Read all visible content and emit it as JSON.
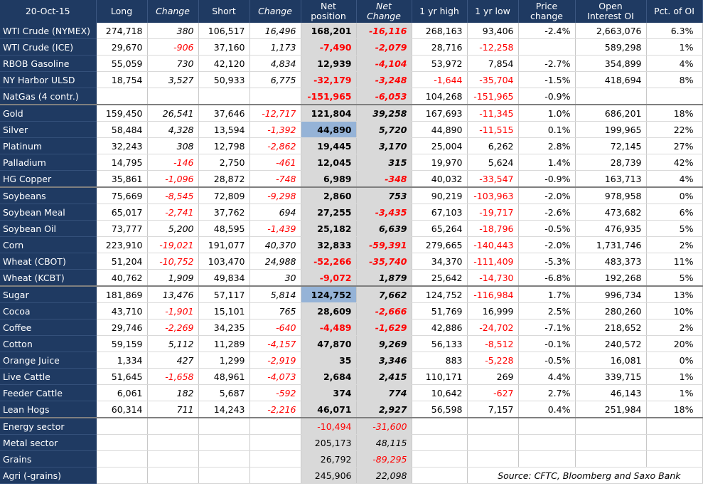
{
  "header": {
    "date": "20-Oct-15",
    "long": "Long",
    "change": "Change",
    "short": "Short",
    "change2": "Change",
    "net_position_line1": "Net",
    "net_position_line2": "position",
    "net_change_line1": "Net",
    "net_change_line2": "Change",
    "yr_high": "1 yr high",
    "yr_low": "1 yr low",
    "price_change_line1": "Price",
    "price_change_line2": "change",
    "oi_line1": "Open",
    "oi_line2": "Interest OI",
    "pct_oi": "Pct. of OI"
  },
  "rows": [
    {
      "name": "WTI Crude (NYMEX)",
      "long": "274,718",
      "chg_long": "380",
      "short": "106,517",
      "chg_short": "16,496",
      "net": "168,201",
      "net_chg": "-16,116",
      "high": "268,163",
      "low": "93,406",
      "price_chg": "-2.4%",
      "oi": "2,663,076",
      "pct": "6.3%"
    },
    {
      "name": "WTI Crude (ICE)",
      "long": "29,670",
      "chg_long": "-906",
      "short": "37,160",
      "chg_short": "1,173",
      "net": "-7,490",
      "net_chg": "-2,079",
      "high": "28,716",
      "low": "-12,258",
      "price_chg": "",
      "oi": "589,298",
      "pct": "1%"
    },
    {
      "name": "RBOB Gasoline",
      "long": "55,059",
      "chg_long": "730",
      "short": "42,120",
      "chg_short": "4,834",
      "net": "12,939",
      "net_chg": "-4,104",
      "high": "53,972",
      "low": "7,854",
      "price_chg": "-2.7%",
      "oi": "354,899",
      "pct": "4%"
    },
    {
      "name": "NY Harbor ULSD",
      "long": "18,754",
      "chg_long": "3,527",
      "short": "50,933",
      "chg_short": "6,775",
      "net": "-32,179",
      "net_chg": "-3,248",
      "high": "-1,644",
      "low": "-35,704",
      "price_chg": "-1.5%",
      "oi": "418,694",
      "pct": "8%"
    },
    {
      "name": "NatGas (4 contr.)",
      "long": "",
      "chg_long": "",
      "short": "",
      "chg_short": "",
      "net": "-151,965",
      "net_chg": "-6,053",
      "high": "104,268",
      "low": "-151,965",
      "price_chg": "-0.9%",
      "oi": "",
      "pct": ""
    },
    {
      "name": "Gold",
      "long": "159,450",
      "chg_long": "26,541",
      "short": "37,646",
      "chg_short": "-12,717",
      "net": "121,804",
      "net_chg": "39,258",
      "high": "167,693",
      "low": "-11,345",
      "price_chg": "1.0%",
      "oi": "686,201",
      "pct": "18%"
    },
    {
      "name": "Silver",
      "long": "58,484",
      "chg_long": "4,328",
      "short": "13,594",
      "chg_short": "-1,392",
      "net": "44,890",
      "net_chg": "5,720",
      "high": "44,890",
      "low": "-11,515",
      "price_chg": "0.1%",
      "oi": "199,965",
      "pct": "22%"
    },
    {
      "name": "Platinum",
      "long": "32,243",
      "chg_long": "308",
      "short": "12,798",
      "chg_short": "-2,862",
      "net": "19,445",
      "net_chg": "3,170",
      "high": "25,004",
      "low": "6,262",
      "price_chg": "2.8%",
      "oi": "72,145",
      "pct": "27%"
    },
    {
      "name": "Palladium",
      "long": "14,795",
      "chg_long": "-146",
      "short": "2,750",
      "chg_short": "-461",
      "net": "12,045",
      "net_chg": "315",
      "high": "19,970",
      "low": "5,624",
      "price_chg": "1.4%",
      "oi": "28,739",
      "pct": "42%"
    },
    {
      "name": "HG Copper",
      "long": "35,861",
      "chg_long": "-1,096",
      "short": "28,872",
      "chg_short": "-748",
      "net": "6,989",
      "net_chg": "-348",
      "high": "40,032",
      "low": "-33,547",
      "price_chg": "-0.9%",
      "oi": "163,713",
      "pct": "4%"
    },
    {
      "name": "Soybeans",
      "long": "75,669",
      "chg_long": "-8,545",
      "short": "72,809",
      "chg_short": "-9,298",
      "net": "2,860",
      "net_chg": "753",
      "high": "90,219",
      "low": "-103,963",
      "price_chg": "-2.0%",
      "oi": "978,958",
      "pct": "0%"
    },
    {
      "name": "Soybean Meal",
      "long": "65,017",
      "chg_long": "-2,741",
      "short": "37,762",
      "chg_short": "694",
      "net": "27,255",
      "net_chg": "-3,435",
      "high": "67,103",
      "low": "-19,717",
      "price_chg": "-2.6%",
      "oi": "473,682",
      "pct": "6%"
    },
    {
      "name": "Soybean Oil",
      "long": "73,777",
      "chg_long": "5,200",
      "short": "48,595",
      "chg_short": "-1,439",
      "net": "25,182",
      "net_chg": "6,639",
      "high": "65,264",
      "low": "-18,796",
      "price_chg": "-0.5%",
      "oi": "476,935",
      "pct": "5%"
    },
    {
      "name": "Corn",
      "long": "223,910",
      "chg_long": "-19,021",
      "short": "191,077",
      "chg_short": "40,370",
      "net": "32,833",
      "net_chg": "-59,391",
      "high": "279,665",
      "low": "-140,443",
      "price_chg": "-2.0%",
      "oi": "1,731,746",
      "pct": "2%"
    },
    {
      "name": "Wheat (CBOT)",
      "long": "51,204",
      "chg_long": "-10,752",
      "short": "103,470",
      "chg_short": "24,988",
      "net": "-52,266",
      "net_chg": "-35,740",
      "high": "34,370",
      "low": "-111,409",
      "price_chg": "-5.3%",
      "oi": "483,373",
      "pct": "11%"
    },
    {
      "name": "Wheat (KCBT)",
      "long": "40,762",
      "chg_long": "1,909",
      "short": "49,834",
      "chg_short": "30",
      "net": "-9,072",
      "net_chg": "1,879",
      "high": "25,642",
      "low": "-14,730",
      "price_chg": "-6.8%",
      "oi": "192,268",
      "pct": "5%"
    },
    {
      "name": "Sugar",
      "long": "181,869",
      "chg_long": "13,476",
      "short": "57,117",
      "chg_short": "5,814",
      "net": "124,752",
      "net_chg": "7,662",
      "high": "124,752",
      "low": "-116,984",
      "price_chg": "1.7%",
      "oi": "996,734",
      "pct": "13%"
    },
    {
      "name": "Cocoa",
      "long": "43,710",
      "chg_long": "-1,901",
      "short": "15,101",
      "chg_short": "765",
      "net": "28,609",
      "net_chg": "-2,666",
      "high": "51,769",
      "low": "16,999",
      "price_chg": "2.5%",
      "oi": "280,260",
      "pct": "10%"
    },
    {
      "name": "Coffee",
      "long": "29,746",
      "chg_long": "-2,269",
      "short": "34,235",
      "chg_short": "-640",
      "net": "-4,489",
      "net_chg": "-1,629",
      "high": "42,886",
      "low": "-24,702",
      "price_chg": "-7.1%",
      "oi": "218,652",
      "pct": "2%"
    },
    {
      "name": "Cotton",
      "long": "59,159",
      "chg_long": "5,112",
      "short": "11,289",
      "chg_short": "-4,157",
      "net": "47,870",
      "net_chg": "9,269",
      "high": "56,133",
      "low": "-8,512",
      "price_chg": "-0.1%",
      "oi": "240,572",
      "pct": "20%"
    },
    {
      "name": "Orange Juice",
      "long": "1,334",
      "chg_long": "427",
      "short": "1,299",
      "chg_short": "-2,919",
      "net": "35",
      "net_chg": "3,346",
      "high": "883",
      "low": "-5,228",
      "price_chg": "-0.5%",
      "oi": "16,081",
      "pct": "0%"
    },
    {
      "name": "Live Cattle",
      "long": "51,645",
      "chg_long": "-1,658",
      "short": "48,961",
      "chg_short": "-4,073",
      "net": "2,684",
      "net_chg": "2,415",
      "high": "110,171",
      "low": "269",
      "price_chg": "4.4%",
      "oi": "339,715",
      "pct": "1%"
    },
    {
      "name": "Feeder Cattle",
      "long": "6,061",
      "chg_long": "182",
      "short": "5,687",
      "chg_short": "-592",
      "net": "374",
      "net_chg": "774",
      "high": "10,642",
      "low": "-627",
      "price_chg": "2.7%",
      "oi": "46,143",
      "pct": "1%"
    },
    {
      "name": "Lean Hogs",
      "long": "60,314",
      "chg_long": "711",
      "short": "14,243",
      "chg_short": "-2,216",
      "net": "46,071",
      "net_chg": "2,927",
      "high": "56,598",
      "low": "7,157",
      "price_chg": "0.4%",
      "oi": "251,984",
      "pct": "18%"
    }
  ],
  "sectors": [
    {
      "name": "Energy sector",
      "net": "-10,494",
      "net_chg": "-31,600"
    },
    {
      "name": "Metal sector",
      "net": "205,173",
      "net_chg": "48,115"
    },
    {
      "name": "Grains",
      "net": "26,792",
      "net_chg": "-89,295"
    },
    {
      "name": "Agri (-grains)",
      "net": "245,906",
      "net_chg": "22,098"
    }
  ],
  "source": "Source: CFTC, Bloomberg and Saxo Bank",
  "colors": {
    "header": "#1f3a62",
    "negative": "#ff0000",
    "net_bg": "#d9d9d9",
    "highlight": "#95b3d7"
  }
}
